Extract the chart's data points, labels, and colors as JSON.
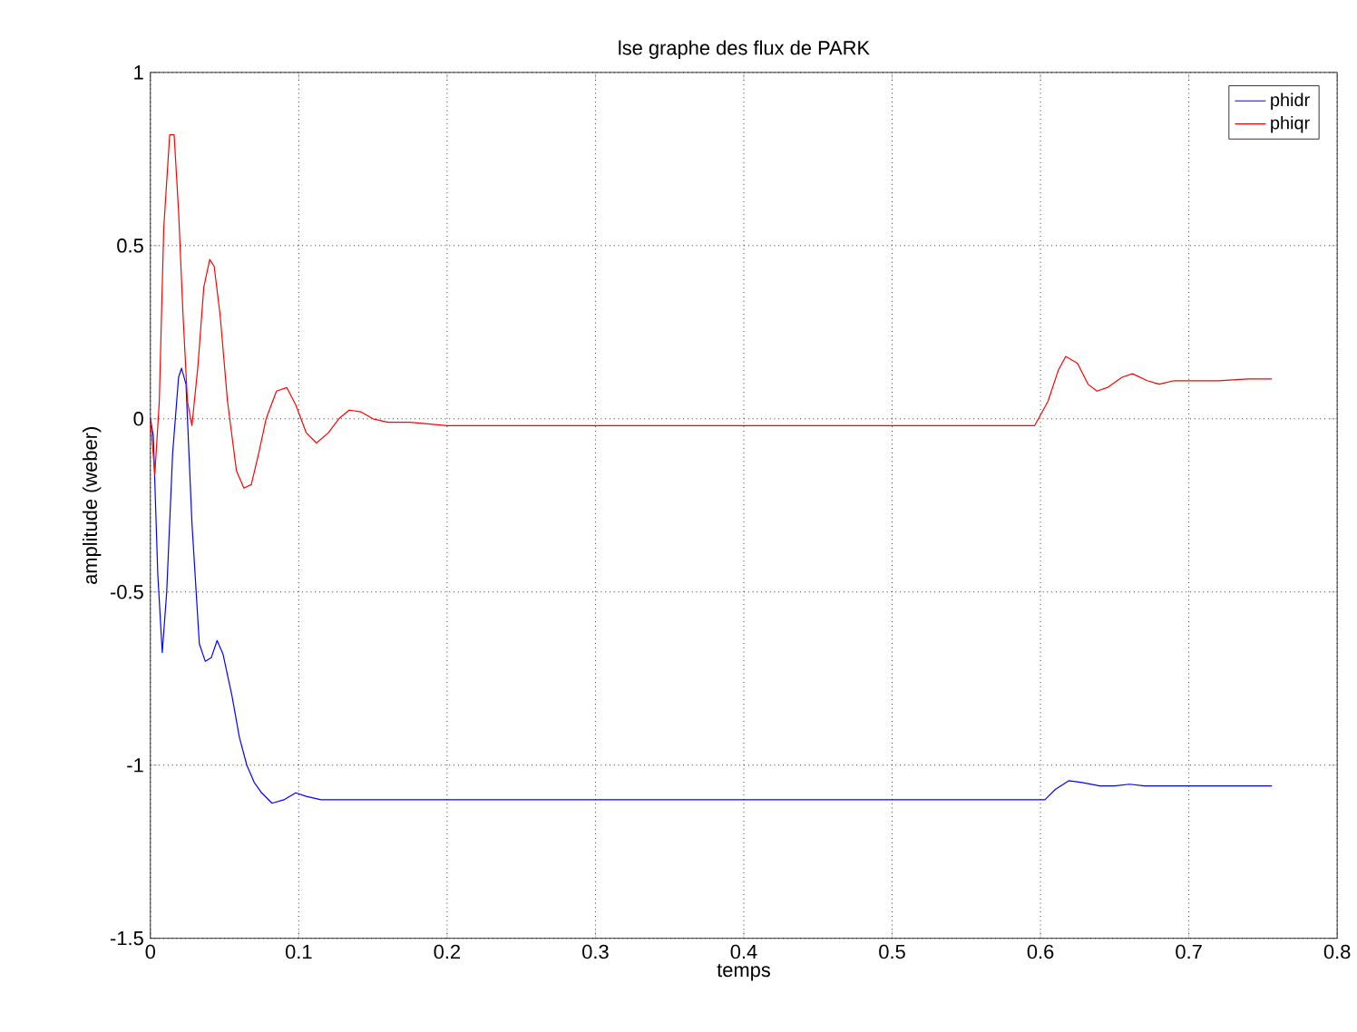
{
  "chart_data": {
    "type": "line",
    "title": "lse graphe des flux de PARK",
    "xlabel": "temps",
    "ylabel": "amplitude (weber)",
    "xlim": [
      0,
      0.8
    ],
    "ylim": [
      -1.5,
      1
    ],
    "xticks": [
      0,
      0.1,
      0.2,
      0.3,
      0.4,
      0.5,
      0.6,
      0.7,
      0.8
    ],
    "yticks": [
      -1.5,
      -1,
      -0.5,
      0,
      0.5,
      1
    ],
    "grid": true,
    "legend": "top right",
    "line_style": "solid",
    "marker": "none",
    "series": [
      {
        "name": "phidr",
        "color": "#0000ff",
        "x": [
          0,
          0.002,
          0.005,
          0.008,
          0.011,
          0.015,
          0.019,
          0.021,
          0.024,
          0.028,
          0.033,
          0.037,
          0.041,
          0.045,
          0.049,
          0.055,
          0.06,
          0.065,
          0.07,
          0.075,
          0.082,
          0.09,
          0.098,
          0.105,
          0.115,
          0.125,
          0.14,
          0.16,
          0.2,
          0.25,
          0.3,
          0.4,
          0.5,
          0.6,
          0.603,
          0.61,
          0.619,
          0.628,
          0.64,
          0.65,
          0.66,
          0.67,
          0.68,
          0.7,
          0.73,
          0.756
        ],
        "values": [
          0,
          -0.05,
          -0.45,
          -0.675,
          -0.5,
          -0.1,
          0.12,
          0.146,
          0.1,
          -0.3,
          -0.65,
          -0.7,
          -0.69,
          -0.64,
          -0.68,
          -0.8,
          -0.92,
          -1.0,
          -1.05,
          -1.08,
          -1.11,
          -1.1,
          -1.08,
          -1.09,
          -1.1,
          -1.1,
          -1.1,
          -1.1,
          -1.1,
          -1.1,
          -1.1,
          -1.1,
          -1.1,
          -1.1,
          -1.1,
          -1.07,
          -1.045,
          -1.05,
          -1.06,
          -1.06,
          -1.055,
          -1.06,
          -1.06,
          -1.06,
          -1.06,
          -1.06
        ]
      },
      {
        "name": "phiqr",
        "color": "#ff0000",
        "x": [
          0,
          0.003,
          0.006,
          0.009,
          0.013,
          0.016,
          0.019,
          0.022,
          0.025,
          0.028,
          0.032,
          0.036,
          0.04,
          0.043,
          0.047,
          0.052,
          0.058,
          0.063,
          0.068,
          0.073,
          0.078,
          0.085,
          0.092,
          0.098,
          0.105,
          0.112,
          0.12,
          0.127,
          0.134,
          0.142,
          0.15,
          0.16,
          0.175,
          0.2,
          0.25,
          0.3,
          0.4,
          0.5,
          0.596,
          0.605,
          0.612,
          0.617,
          0.625,
          0.632,
          0.638,
          0.645,
          0.655,
          0.662,
          0.672,
          0.68,
          0.69,
          0.7,
          0.72,
          0.74,
          0.756
        ],
        "values": [
          0,
          -0.16,
          0.05,
          0.55,
          0.82,
          0.82,
          0.6,
          0.3,
          0.05,
          -0.02,
          0.15,
          0.38,
          0.46,
          0.44,
          0.3,
          0.05,
          -0.15,
          -0.2,
          -0.19,
          -0.1,
          0.0,
          0.08,
          0.09,
          0.04,
          -0.04,
          -0.07,
          -0.04,
          0.0,
          0.025,
          0.02,
          0.0,
          -0.01,
          -0.01,
          -0.02,
          -0.02,
          -0.02,
          -0.02,
          -0.02,
          -0.02,
          0.05,
          0.14,
          0.18,
          0.16,
          0.1,
          0.08,
          0.09,
          0.12,
          0.13,
          0.11,
          0.1,
          0.11,
          0.11,
          0.11,
          0.115,
          0.115
        ]
      }
    ]
  }
}
